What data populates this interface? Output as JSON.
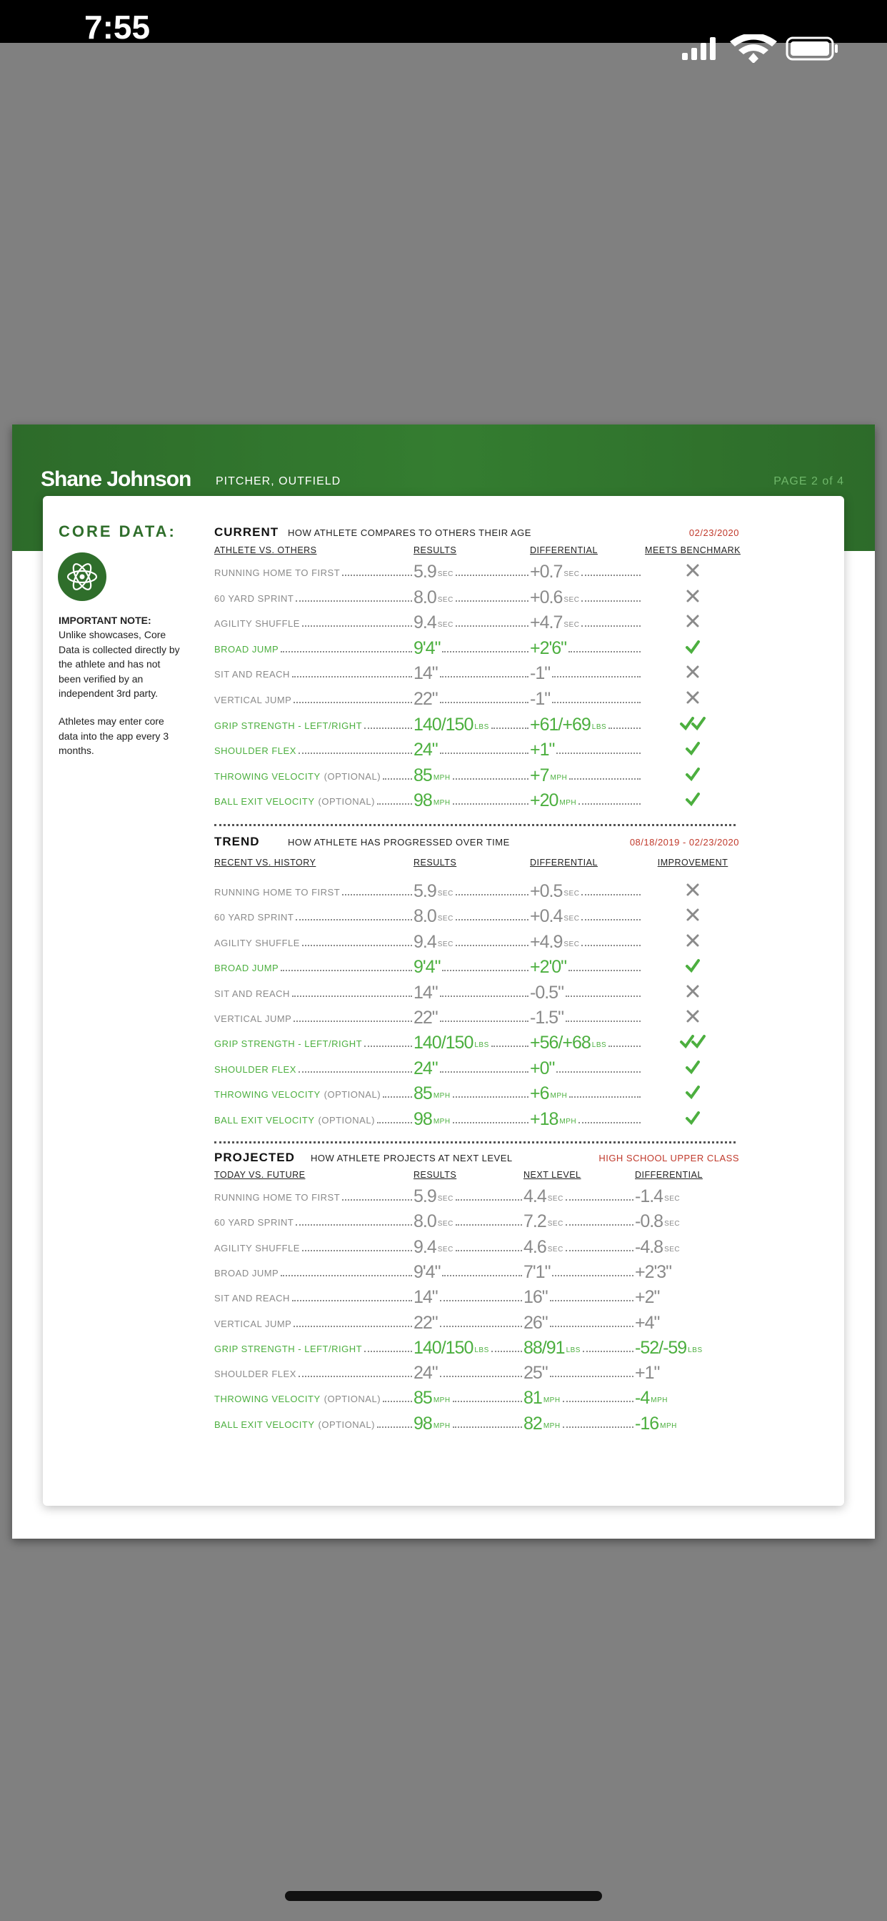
{
  "status": {
    "time": "7:55"
  },
  "header": {
    "name": "Shane Johnson",
    "position": "PITCHER, OUTFIELD",
    "page": "PAGE 2 of 4"
  },
  "sidebar": {
    "title": "CORE DATA:",
    "note_title": "IMPORTANT NOTE:",
    "note_body": "Unlike showcases, Core Data is collected directly by the athlete and has not been verified by an independent 3rd party.",
    "note_body2": "Athletes may enter core data into the app every 3 months."
  },
  "sections": [
    {
      "title": "CURRENT",
      "subtitle": "HOW ATHLETE COMPARES TO OTHERS THEIR AGE",
      "date": "02/23/2020",
      "columns": [
        "ATHLETE VS. OTHERS",
        "RESULTS",
        "DIFFERENTIAL",
        "MEETS BENCHMARK"
      ],
      "rows": [
        {
          "label": "RUNNING HOME TO FIRST",
          "highlight": false,
          "cells": [
            {
              "value": "5.9",
              "unit": "SEC"
            },
            {
              "value": "+0.7",
              "unit": "SEC"
            }
          ],
          "met": [
            false
          ]
        },
        {
          "label": "60 YARD SPRINT",
          "highlight": false,
          "cells": [
            {
              "value": "8.0",
              "unit": "SEC"
            },
            {
              "value": "+0.6",
              "unit": "SEC"
            }
          ],
          "met": [
            false
          ]
        },
        {
          "label": "AGILITY SHUFFLE",
          "highlight": false,
          "cells": [
            {
              "value": "9.4",
              "unit": "SEC"
            },
            {
              "value": "+4.7",
              "unit": "SEC"
            }
          ],
          "met": [
            false
          ]
        },
        {
          "label": "BROAD JUMP",
          "highlight": true,
          "cells": [
            {
              "value": "9'4\""
            },
            {
              "value": "+2'6\""
            }
          ],
          "met": [
            true
          ]
        },
        {
          "label": "SIT AND REACH",
          "highlight": false,
          "cells": [
            {
              "value": "14\""
            },
            {
              "value": "-1\""
            }
          ],
          "met": [
            false
          ]
        },
        {
          "label": "VERTICAL JUMP",
          "highlight": false,
          "cells": [
            {
              "value": "22\""
            },
            {
              "value": "-1\""
            }
          ],
          "met": [
            false
          ]
        },
        {
          "label": "GRIP STRENGTH - LEFT/RIGHT",
          "highlight": true,
          "cells": [
            {
              "value": "140/150",
              "unit": "LBS"
            },
            {
              "value": "+61/+69",
              "unit": "LBS"
            }
          ],
          "met": [
            true,
            true
          ]
        },
        {
          "label": "SHOULDER FLEX",
          "highlight": true,
          "cells": [
            {
              "value": "24\""
            },
            {
              "value": "+1\""
            }
          ],
          "met": [
            true
          ]
        },
        {
          "label": "THROWING VELOCITY",
          "optional": "(OPTIONAL)",
          "highlight": true,
          "cells": [
            {
              "value": "85",
              "unit": "MPH"
            },
            {
              "value": "+7",
              "unit": "MPH"
            }
          ],
          "met": [
            true
          ]
        },
        {
          "label": "BALL EXIT VELOCITY",
          "optional": "(OPTIONAL)",
          "highlight": true,
          "cells": [
            {
              "value": "98",
              "unit": "MPH"
            },
            {
              "value": "+20",
              "unit": "MPH"
            }
          ],
          "met": [
            true
          ]
        }
      ]
    },
    {
      "title": "TREND",
      "subtitle": "HOW ATHLETE HAS PROGRESSED OVER TIME",
      "date": "08/18/2019 - 02/23/2020",
      "columns": [
        "RECENT VS. HISTORY",
        "RESULTS",
        "DIFFERENTIAL",
        "IMPROVEMENT"
      ],
      "rows": [
        {
          "label": "RUNNING HOME TO FIRST",
          "highlight": false,
          "cells": [
            {
              "value": "5.9",
              "unit": "SEC"
            },
            {
              "value": "+0.5",
              "unit": "SEC"
            }
          ],
          "met": [
            false
          ]
        },
        {
          "label": "60 YARD SPRINT",
          "highlight": false,
          "cells": [
            {
              "value": "8.0",
              "unit": "SEC"
            },
            {
              "value": "+0.4",
              "unit": "SEC"
            }
          ],
          "met": [
            false
          ]
        },
        {
          "label": "AGILITY SHUFFLE",
          "highlight": false,
          "cells": [
            {
              "value": "9.4",
              "unit": "SEC"
            },
            {
              "value": "+4.9",
              "unit": "SEC"
            }
          ],
          "met": [
            false
          ]
        },
        {
          "label": "BROAD JUMP",
          "highlight": true,
          "cells": [
            {
              "value": "9'4\""
            },
            {
              "value": "+2'0\""
            }
          ],
          "met": [
            true
          ]
        },
        {
          "label": "SIT AND REACH",
          "highlight": false,
          "cells": [
            {
              "value": "14\""
            },
            {
              "value": "-0.5\""
            }
          ],
          "met": [
            false
          ]
        },
        {
          "label": "VERTICAL JUMP",
          "highlight": false,
          "cells": [
            {
              "value": "22\""
            },
            {
              "value": "-1.5\""
            }
          ],
          "met": [
            false
          ]
        },
        {
          "label": "GRIP STRENGTH - LEFT/RIGHT",
          "highlight": true,
          "cells": [
            {
              "value": "140/150",
              "unit": "LBS"
            },
            {
              "value": "+56/+68",
              "unit": "LBS"
            }
          ],
          "met": [
            true,
            true
          ]
        },
        {
          "label": "SHOULDER FLEX",
          "highlight": true,
          "cells": [
            {
              "value": "24\""
            },
            {
              "value": "+0\""
            }
          ],
          "met": [
            true
          ]
        },
        {
          "label": "THROWING VELOCITY",
          "optional": "(OPTIONAL)",
          "highlight": true,
          "cells": [
            {
              "value": "85",
              "unit": "MPH"
            },
            {
              "value": "+6",
              "unit": "MPH"
            }
          ],
          "met": [
            true
          ]
        },
        {
          "label": "BALL EXIT VELOCITY",
          "optional": "(OPTIONAL)",
          "highlight": true,
          "cells": [
            {
              "value": "98",
              "unit": "MPH"
            },
            {
              "value": "+18",
              "unit": "MPH"
            }
          ],
          "met": [
            true
          ]
        }
      ]
    },
    {
      "title": "PROJECTED",
      "subtitle": "HOW ATHLETE PROJECTS AT NEXT LEVEL",
      "date": "HIGH SCHOOL UPPER CLASS",
      "columns": [
        "TODAY VS. FUTURE",
        "RESULTS",
        "NEXT LEVEL",
        "DIFFERENTIAL"
      ],
      "rows": [
        {
          "label": "RUNNING HOME TO FIRST",
          "highlight": false,
          "cells": [
            {
              "value": "5.9",
              "unit": "SEC"
            },
            {
              "value": "4.4",
              "unit": "SEC"
            },
            {
              "value": "-1.4",
              "unit": "SEC"
            }
          ]
        },
        {
          "label": "60 YARD SPRINT",
          "highlight": false,
          "cells": [
            {
              "value": "8.0",
              "unit": "SEC"
            },
            {
              "value": "7.2",
              "unit": "SEC"
            },
            {
              "value": "-0.8",
              "unit": "SEC"
            }
          ]
        },
        {
          "label": "AGILITY SHUFFLE",
          "highlight": false,
          "cells": [
            {
              "value": "9.4",
              "unit": "SEC"
            },
            {
              "value": "4.6",
              "unit": "SEC"
            },
            {
              "value": "-4.8",
              "unit": "SEC"
            }
          ]
        },
        {
          "label": "BROAD JUMP",
          "highlight": false,
          "cells": [
            {
              "value": "9'4\""
            },
            {
              "value": "7'1\""
            },
            {
              "value": "+2'3\""
            }
          ]
        },
        {
          "label": "SIT AND REACH",
          "highlight": false,
          "cells": [
            {
              "value": "14\""
            },
            {
              "value": "16\""
            },
            {
              "value": "+2\""
            }
          ]
        },
        {
          "label": "VERTICAL JUMP",
          "highlight": false,
          "cells": [
            {
              "value": "22\""
            },
            {
              "value": "26\""
            },
            {
              "value": "+4\""
            }
          ]
        },
        {
          "label": "GRIP STRENGTH - LEFT/RIGHT",
          "highlight": true,
          "cells": [
            {
              "value": "140/150",
              "unit": "LBS"
            },
            {
              "value": "88/91",
              "unit": "LBS"
            },
            {
              "value": "-52/-59",
              "unit": "LBS"
            }
          ]
        },
        {
          "label": "SHOULDER FLEX",
          "highlight": false,
          "cells": [
            {
              "value": "24\""
            },
            {
              "value": "25\""
            },
            {
              "value": "+1\""
            }
          ]
        },
        {
          "label": "THROWING VELOCITY",
          "optional": "(OPTIONAL)",
          "highlight": true,
          "cells": [
            {
              "value": "85",
              "unit": "MPH"
            },
            {
              "value": "81",
              "unit": "MPH"
            },
            {
              "value": "-4",
              "unit": "MPH"
            }
          ]
        },
        {
          "label": "BALL EXIT VELOCITY",
          "optional": "(OPTIONAL)",
          "highlight": true,
          "cells": [
            {
              "value": "98",
              "unit": "MPH"
            },
            {
              "value": "82",
              "unit": "MPH"
            },
            {
              "value": "-16",
              "unit": "MPH"
            }
          ]
        }
      ]
    }
  ]
}
